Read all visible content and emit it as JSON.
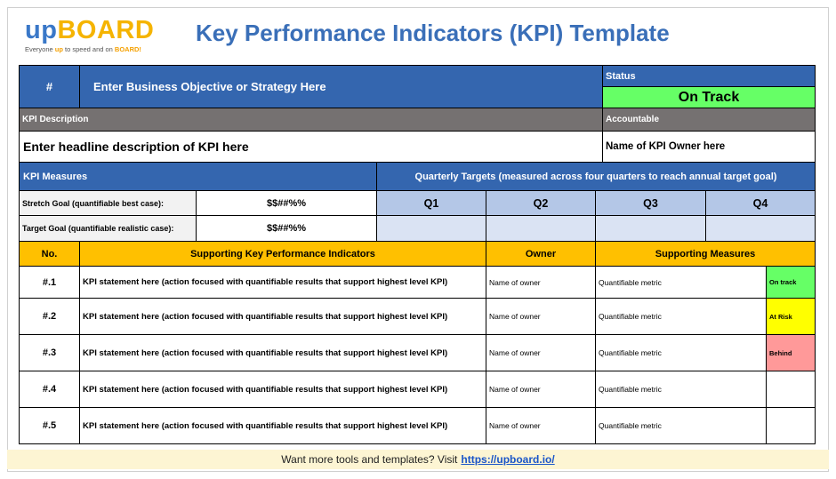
{
  "logo": {
    "up": "up",
    "board": "BOARD",
    "tagline_pre": "Everyone ",
    "tagline_up": "up",
    "tagline_mid": " to speed and on ",
    "tagline_board": "BOARD!"
  },
  "title": "Key Performance Indicators (KPI) Template",
  "header": {
    "number": "#",
    "objective": "Enter Business Objective or Strategy Here",
    "status_label": "Status",
    "status_value": "On Track",
    "kpi_description_label": "KPI Description",
    "accountable_label": "Accountable",
    "headline": "Enter headline description of KPI here",
    "owner_name": "Name of KPI Owner here"
  },
  "measures": {
    "label": "KPI Measures",
    "quarterly_label": "Quarterly Targets (measured across four quarters to reach annual target goal)",
    "quarters": [
      "Q1",
      "Q2",
      "Q3",
      "Q4"
    ],
    "stretch_label": "Stretch Goal (quantifiable best case):",
    "stretch_value": "$$##%%",
    "target_label": "Target Goal (quantifiable realistic case):",
    "target_value": "$$##%%"
  },
  "table": {
    "headers": {
      "no": "No.",
      "kpi": "Supporting Key Performance Indicators",
      "owner": "Owner",
      "measures": "Supporting Measures"
    },
    "rows": [
      {
        "no": "#.1",
        "statement": "KPI statement here (action focused with quantifiable results that support highest level KPI)",
        "owner": "Name of owner",
        "metric": "Quantifiable metric",
        "status": "On track"
      },
      {
        "no": "#.2",
        "statement": "KPI statement here (action focused with quantifiable results that support highest level KPI)",
        "owner": "Name of owner",
        "metric": "Quantifiable metric",
        "status": "At Risk"
      },
      {
        "no": "#.3",
        "statement": "KPI statement here (action focused with quantifiable results that support highest level KPI)",
        "owner": "Name of owner",
        "metric": "Quantifiable metric",
        "status": "Behind"
      },
      {
        "no": "#.4",
        "statement": "KPI statement here (action focused with quantifiable results that support highest level KPI)",
        "owner": "Name of owner",
        "metric": "Quantifiable metric",
        "status": ""
      },
      {
        "no": "#.5",
        "statement": "KPI statement here (action focused with quantifiable results that support highest level KPI)",
        "owner": "Name of owner",
        "metric": "Quantifiable metric",
        "status": ""
      }
    ]
  },
  "status_colors": {
    "On track": "#66ff66",
    "At Risk": "#ffff00",
    "Behind": "#ff9999",
    "": "#ffffff"
  },
  "footer": {
    "text": "Want more tools and templates? Visit",
    "link": "https://upboard.io/"
  }
}
